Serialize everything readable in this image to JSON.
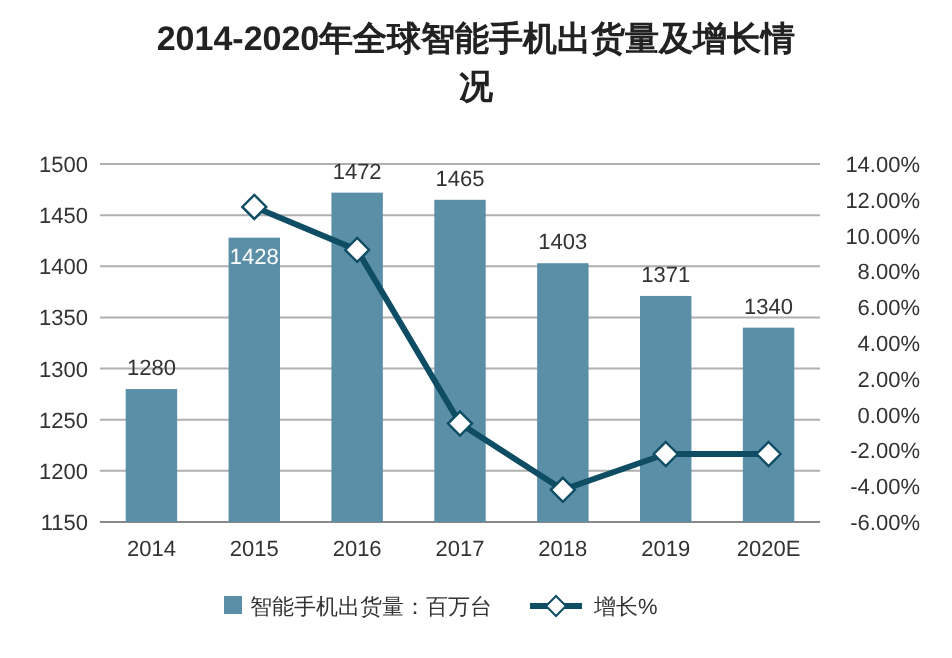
{
  "chart_data": {
    "type": "bar",
    "title": "2014-2020年全球智能手机出货量及增长情况",
    "categories": [
      "2014",
      "2015",
      "2016",
      "2017",
      "2018",
      "2019",
      "2020E"
    ],
    "series": [
      {
        "name": "智能手机出货量：百万台",
        "color": "#5b8fa8",
        "values": [
          1280,
          1428,
          1472,
          1465,
          1403,
          1371,
          1340
        ],
        "value_labels": [
          "1280",
          "1428",
          "1472",
          "1465",
          "1403",
          "1371",
          "1340"
        ]
      },
      {
        "name": "增长%",
        "type": "line",
        "color": "#0e4d64",
        "axis": "y2",
        "marker": "diamond",
        "values": [
          null,
          11.6,
          9.2,
          -0.5,
          -4.2,
          -2.2,
          -2.2
        ]
      }
    ],
    "ylim": [
      1150,
      1500
    ],
    "yticks": [
      1150,
      1200,
      1250,
      1300,
      1350,
      1400,
      1450,
      1500
    ],
    "y2lim": [
      -6,
      14
    ],
    "y2ticks": [
      {
        "value": -6,
        "label": "-6.00%"
      },
      {
        "value": -4,
        "label": "-4.00%"
      },
      {
        "value": -2,
        "label": "-2.00%"
      },
      {
        "value": 0,
        "label": "0.00%"
      },
      {
        "value": 2,
        "label": "2.00%"
      },
      {
        "value": 4,
        "label": "4.00%"
      },
      {
        "value": 6,
        "label": "6.00%"
      },
      {
        "value": 8,
        "label": "8.00%"
      },
      {
        "value": 10,
        "label": "10.00%"
      },
      {
        "value": 12,
        "label": "12.00%"
      },
      {
        "value": 14,
        "label": "14.00%"
      }
    ],
    "grid": "y",
    "legend": "bottom"
  }
}
